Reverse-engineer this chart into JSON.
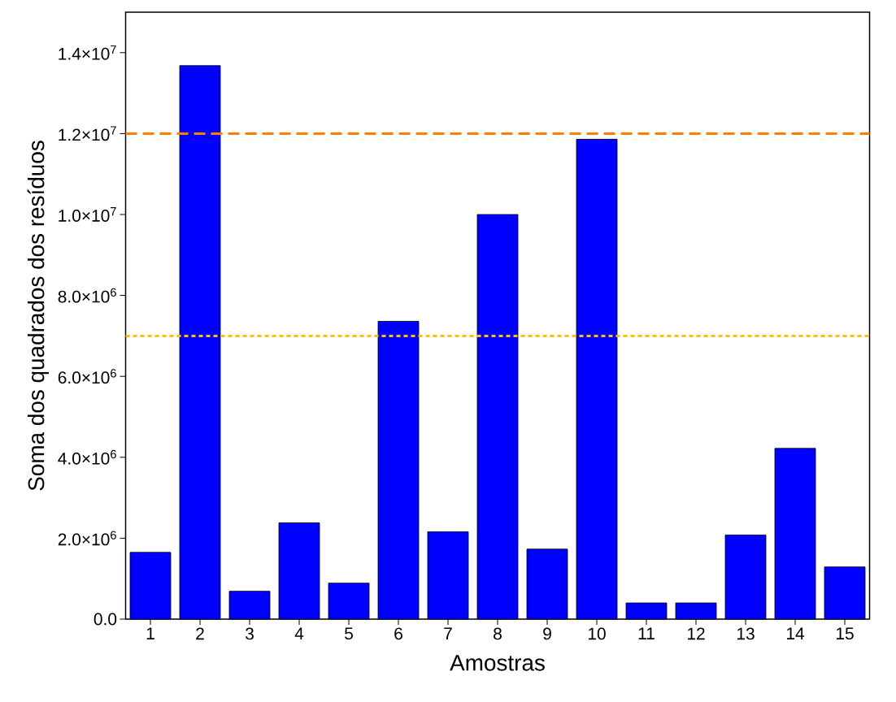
{
  "chart_data": {
    "type": "bar",
    "xlabel": "Amostras",
    "ylabel": "Soma dos quadrados dos resíduos",
    "categories": [
      "1",
      "2",
      "3",
      "4",
      "5",
      "6",
      "7",
      "8",
      "9",
      "10",
      "11",
      "12",
      "13",
      "14",
      "15"
    ],
    "values": [
      1650000,
      13680000,
      690000,
      2380000,
      890000,
      7360000,
      2160000,
      10000000,
      1730000,
      11860000,
      400000,
      400000,
      2080000,
      4220000,
      1290000
    ],
    "color": "#0000ff",
    "ylim": [
      0,
      15000000
    ],
    "yticks": [
      {
        "value": 0,
        "label": "0.0"
      },
      {
        "value": 2000000,
        "label": "2.0×10$^{6}$"
      },
      {
        "value": 4000000,
        "label": "4.0×10$^{6}$"
      },
      {
        "value": 6000000,
        "label": "6.0×10$^{6}$"
      },
      {
        "value": 8000000,
        "label": "8.0×10$^{6}$"
      },
      {
        "value": 10000000,
        "label": "1.0×10$^{7}$"
      },
      {
        "value": 12000000,
        "label": "1.2×10$^{7}$"
      },
      {
        "value": 14000000,
        "label": "1.4×10$^{7}$"
      }
    ],
    "ref_lines": [
      {
        "axis": "y",
        "value": 12000000,
        "color": "#ff8000",
        "line_style": "dashed"
      },
      {
        "axis": "y",
        "value": 7000000,
        "color": "#ffc000",
        "line_style": "dotted"
      }
    ],
    "grid": false
  }
}
